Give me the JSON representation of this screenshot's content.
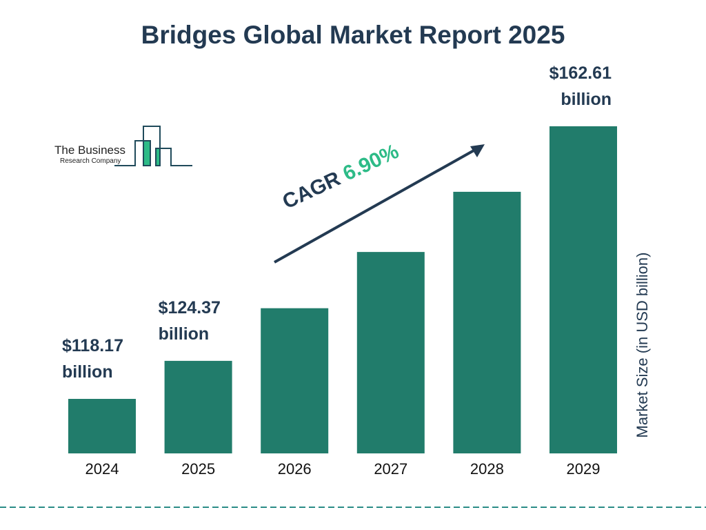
{
  "chart_data": {
    "type": "bar",
    "title": "Bridges Global Market Report 2025",
    "ylabel": "Market Size (in USD billion)",
    "categories": [
      "2024",
      "2025",
      "2026",
      "2027",
      "2028",
      "2029"
    ],
    "values": [
      118.17,
      124.37,
      132.95,
      142.12,
      151.93,
      162.61
    ],
    "data_labels": [
      {
        "category": "2024",
        "line1": "$118.17",
        "line2": "billion"
      },
      {
        "category": "2025",
        "line1": "$124.37",
        "line2": "billion"
      },
      {
        "category": "2029",
        "line1": "$162.61",
        "line2": "billion"
      }
    ],
    "annotation": {
      "label": "CAGR",
      "value": "6.90%"
    },
    "grid": false,
    "bar_color": "#217c6b",
    "accent_color": "#2dbb87",
    "text_color": "#233a52"
  },
  "logo": {
    "line1": "The Business",
    "line2": "Research Company"
  }
}
